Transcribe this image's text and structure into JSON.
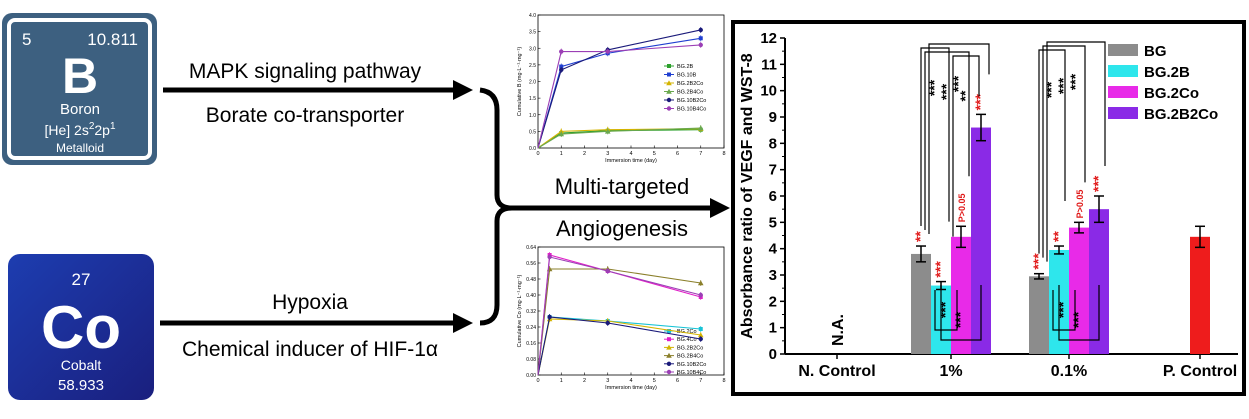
{
  "boron": {
    "number": "5",
    "mass": "10.811",
    "symbol": "B",
    "name": "Boron",
    "config_prefix": "[He] 2s",
    "config_sup1": "2",
    "config_mid": "2p",
    "config_sup2": "1",
    "category": "Metalloid",
    "tile_color": "#3d6080"
  },
  "cobalt": {
    "number": "27",
    "symbol": "Co",
    "name": "Cobalt",
    "mass": "58.933",
    "tile_color": "#1b2f9c"
  },
  "arrows": {
    "boron_top": "MAPK signaling pathway",
    "boron_bottom": "Borate co-transporter",
    "cobalt_top": "Hypoxia",
    "cobalt_bottom": "Chemical inducer of HIF-1α",
    "merge_top": "Multi-targeted",
    "merge_bottom": "Angiogenesis"
  },
  "chart_data": [
    {
      "type": "line",
      "xlabel": "Immersion time (day)",
      "ylabel": "Cumulative B (mg·L⁻¹·mg⁻¹)",
      "xlim": [
        0,
        8
      ],
      "ylim": [
        0,
        4.0
      ],
      "x_ticks": [
        "0",
        "1",
        "2",
        "3",
        "4",
        "5",
        "6",
        "7",
        "8"
      ],
      "y_ticks": [
        "0.0",
        "0.5",
        "1.0",
        "1.5",
        "2.0",
        "2.5",
        "3.0",
        "3.5",
        "4.0"
      ],
      "legend": "middle-right",
      "x": [
        0,
        1,
        3,
        7
      ],
      "series": [
        {
          "name": "BG.2B",
          "color": "#2ca02c",
          "marker": "square",
          "values": [
            0.0,
            0.45,
            0.52,
            0.55
          ]
        },
        {
          "name": "BG.10B",
          "color": "#1f3fd0",
          "marker": "square",
          "values": [
            0.0,
            2.45,
            2.85,
            3.3
          ]
        },
        {
          "name": "BG.2B2Co",
          "color": "#d4b400",
          "marker": "triangle",
          "values": [
            0.0,
            0.5,
            0.55,
            0.58
          ]
        },
        {
          "name": "BG.2B4Co",
          "color": "#6aa84f",
          "marker": "triangle",
          "values": [
            0.0,
            0.42,
            0.5,
            0.6
          ]
        },
        {
          "name": "BG.10B2Co",
          "color": "#1a1a7a",
          "marker": "circle",
          "values": [
            0.0,
            2.35,
            2.95,
            3.55
          ]
        },
        {
          "name": "BG.10B4Co",
          "color": "#9b3fb5",
          "marker": "circle",
          "values": [
            0.0,
            2.9,
            2.9,
            3.1
          ]
        }
      ]
    },
    {
      "type": "line",
      "xlabel": "Immersion time (day)",
      "ylabel": "Cumulative Co (mg·L⁻¹·mg⁻¹)",
      "xlim": [
        0,
        8
      ],
      "ylim": [
        0,
        0.64
      ],
      "x_ticks": [
        "0",
        "1",
        "2",
        "3",
        "4",
        "5",
        "6",
        "7",
        "8"
      ],
      "y_ticks": [
        "0.00",
        "0.08",
        "0.16",
        "0.24",
        "0.32",
        "0.40",
        "0.48",
        "0.56",
        "0.64"
      ],
      "legend": "lower-right",
      "x": [
        0,
        0.5,
        3,
        7
      ],
      "series": [
        {
          "name": "BG.2Co",
          "color": "#17c3d6",
          "marker": "square",
          "values": [
            0.0,
            0.29,
            0.27,
            0.23
          ]
        },
        {
          "name": "BG.4Co",
          "color": "#e020c8",
          "marker": "square",
          "values": [
            0.0,
            0.6,
            0.52,
            0.39
          ]
        },
        {
          "name": "BG.2B2Co",
          "color": "#d4b400",
          "marker": "triangle",
          "values": [
            0.0,
            0.28,
            0.27,
            0.2
          ]
        },
        {
          "name": "BG.2B4Co",
          "color": "#8a7f2a",
          "marker": "triangle",
          "values": [
            0.0,
            0.53,
            0.53,
            0.46
          ]
        },
        {
          "name": "BG.10B2Co",
          "color": "#1a1a7a",
          "marker": "circle",
          "values": [
            0.0,
            0.29,
            0.26,
            0.18
          ]
        },
        {
          "name": "BG.10B4Co",
          "color": "#9b3fb5",
          "marker": "circle",
          "values": [
            0.0,
            0.59,
            0.52,
            0.4
          ]
        }
      ]
    },
    {
      "type": "bar",
      "ylabel": "Absorbance ratio of VEGF and WST-8",
      "ylim": [
        0,
        12
      ],
      "y_ticks": [
        "0",
        "1",
        "2",
        "3",
        "4",
        "5",
        "6",
        "7",
        "8",
        "9",
        "10",
        "11",
        "12"
      ],
      "categories": [
        "N. Control",
        "1%",
        "0.1%",
        "P. Control"
      ],
      "legend": "top-right",
      "series": [
        {
          "name": "BG",
          "color": "#8c8c8c",
          "values": [
            null,
            3.8,
            2.95,
            null
          ],
          "errors": [
            0,
            0.3,
            0.1,
            0
          ]
        },
        {
          "name": "BG.2B",
          "color": "#2ee6ec",
          "values": [
            null,
            2.6,
            3.95,
            null
          ],
          "errors": [
            0,
            0.15,
            0.15,
            0
          ]
        },
        {
          "name": "BG.2Co",
          "color": "#e82ae8",
          "values": [
            null,
            4.45,
            4.8,
            null
          ],
          "errors": [
            0,
            0.4,
            0.2,
            0
          ]
        },
        {
          "name": "BG.2B2Co",
          "color": "#8a2ae6",
          "values": [
            null,
            8.6,
            5.5,
            null
          ],
          "errors": [
            0,
            0.5,
            0.5,
            0
          ]
        }
      ],
      "control": {
        "category": "P. Control",
        "value": 4.45,
        "error": 0.4,
        "color": "#ee1c1c"
      },
      "na_label": "N.A.",
      "significance_vs_control": {
        "1%": [
          "**",
          "***",
          "P>0.05",
          "***"
        ],
        "0.1%": [
          "***",
          "**",
          "P>0.05",
          "***"
        ]
      },
      "pairwise_top": {
        "1%": [
          "***",
          "***",
          "**",
          "***"
        ],
        "0.1%": [
          "***",
          "***",
          "***"
        ]
      },
      "pairwise_bottom": {
        "1%": [
          "***",
          "***"
        ],
        "0.1%": [
          "***",
          "***"
        ]
      },
      "sig_color_control": "#e01818",
      "sig_color_pair": "#000000"
    }
  ]
}
